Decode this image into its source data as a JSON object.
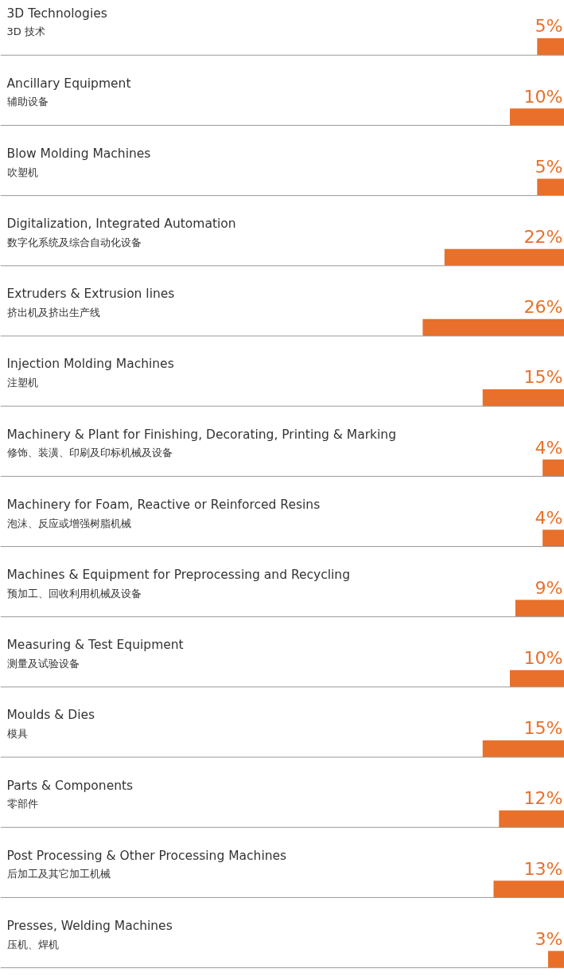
{
  "chart_data": {
    "type": "bar",
    "orientation": "horizontal",
    "data_labels": true,
    "categories": [
      "3D Technologies\n3D 技术",
      "Ancillary Equipment\n辅助设备",
      "Blow Molding Machines\n吹塑机",
      "Digitalization, Integrated Automation\n数字化系统及综合自动化设备",
      "Extruders & Extrusion lines\n挤出机及挤出生产线",
      "Injection Molding Machines\n注塑机",
      "Machinery & Plant for Finishing, Decorating, Printing & Marking\n修饰、装潢、印刷及印标机械及设备",
      "Machinery for Foam, Reactive or Reinforced Resins\n泡沫、反应或增强树脂机械",
      "Machines & Equipment for Preprocessing and Recycling\n预加工、回收利用机械及设备",
      "Measuring & Test Equipment\n测量及试验设备",
      "Moulds & Dies\n模具",
      "Parts & Components\n零部件",
      "Post Processing & Other Processing Machines\n后加工及其它加工机械",
      "Presses, Welding Machines\n压机、焊机"
    ],
    "values": [
      5,
      10,
      5,
      22,
      26,
      15,
      4,
      4,
      9,
      10,
      15,
      12,
      13,
      3
    ],
    "value_labels": [
      "5%",
      "10%",
      "5%",
      "22%",
      "26%",
      "15%",
      "4%",
      "4%",
      "9%",
      "10%",
      "15%",
      "12%",
      "13%",
      "3%"
    ],
    "color": "#e8702a"
  }
}
